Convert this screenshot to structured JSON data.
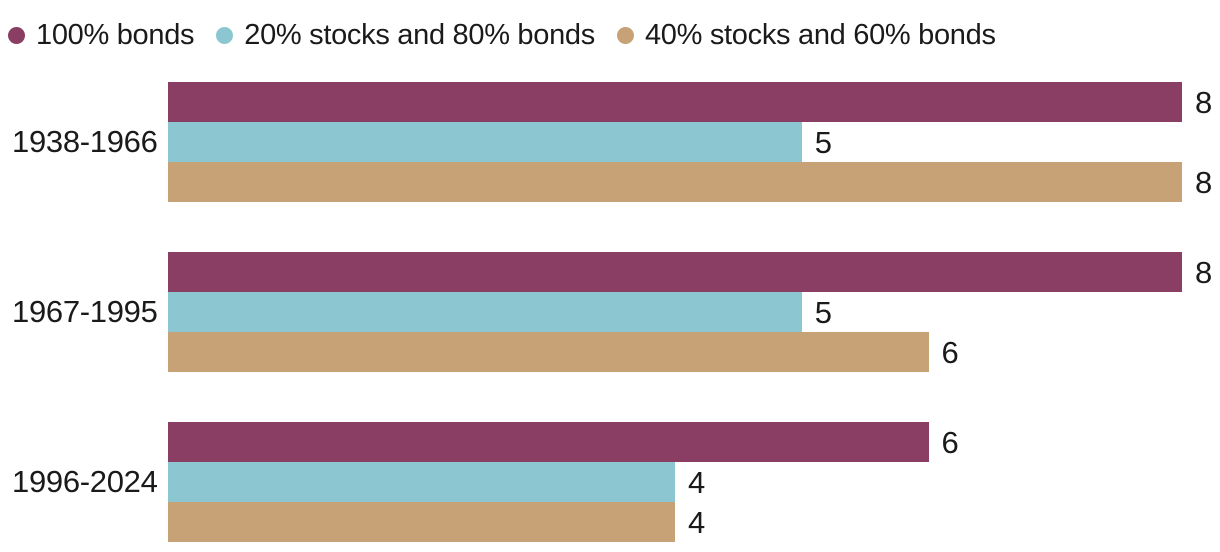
{
  "legend": {
    "items": [
      {
        "label": "100% bonds",
        "color": "#8B3E63",
        "swatch_icon": "circle-swatch-icon"
      },
      {
        "label": "20% stocks and 80% bonds",
        "color": "#8CC7D1",
        "swatch_icon": "circle-swatch-icon"
      },
      {
        "label": "40% stocks and 60% bonds",
        "color": "#C6A276",
        "swatch_icon": "circle-swatch-icon"
      }
    ]
  },
  "chart_data": {
    "type": "bar",
    "orientation": "horizontal",
    "title": "",
    "xlabel": "",
    "ylabel": "",
    "categories": [
      "1938-1966",
      "1967-1995",
      "1996-2024"
    ],
    "series": [
      {
        "name": "100% bonds",
        "color": "#8B3E63",
        "values": [
          8,
          8,
          6
        ]
      },
      {
        "name": "20% stocks and 80% bonds",
        "color": "#8CC7D1",
        "values": [
          5,
          5,
          4
        ]
      },
      {
        "name": "40% stocks and 60% bonds",
        "color": "#C6A276",
        "values": [
          8,
          6,
          4
        ]
      }
    ],
    "xlim": [
      0,
      8
    ],
    "value_labels": true,
    "grid": false,
    "legend_position": "top-left"
  },
  "colors": {
    "background": "#ffffff",
    "text": "#1a1a1a"
  }
}
